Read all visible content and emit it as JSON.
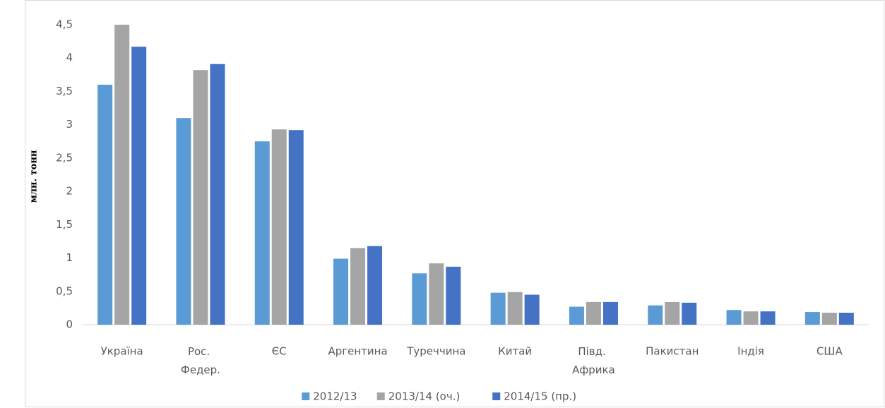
{
  "chart_data": {
    "type": "bar",
    "y_label": "млн. тонн",
    "categories": [
      "Україна",
      "Рос. Федер.",
      "ЄС",
      "Аргентина",
      "Туреччина",
      "Китай",
      "Півд. Африка",
      "Пакистан",
      "Індія",
      "США"
    ],
    "series": [
      {
        "name": "2012/13",
        "color": "#5b9bd5",
        "values": [
          3.6,
          3.1,
          2.75,
          0.99,
          0.77,
          0.48,
          0.27,
          0.29,
          0.22,
          0.19
        ]
      },
      {
        "name": "2013/14 (оч.)",
        "color": "#a5a5a5",
        "values": [
          4.5,
          3.82,
          2.93,
          1.15,
          0.92,
          0.49,
          0.34,
          0.34,
          0.2,
          0.18
        ]
      },
      {
        "name": "2014/15 (пр.)",
        "color": "#4472c4",
        "values": [
          4.17,
          3.91,
          2.92,
          1.18,
          0.87,
          0.45,
          0.34,
          0.33,
          0.2,
          0.18
        ]
      }
    ],
    "ylim": [
      0,
      4.5
    ],
    "yticks": [
      0,
      {
        "value": 0.5,
        "label": "0,5"
      },
      1,
      {
        "value": 1.5,
        "label": "1,5"
      },
      2,
      {
        "value": 2.5,
        "label": "2,5"
      },
      3,
      {
        "value": 3.5,
        "label": "3,5"
      },
      4,
      {
        "value": 4.5,
        "label": "4,5"
      }
    ],
    "grid": false,
    "legend": "bottom"
  }
}
